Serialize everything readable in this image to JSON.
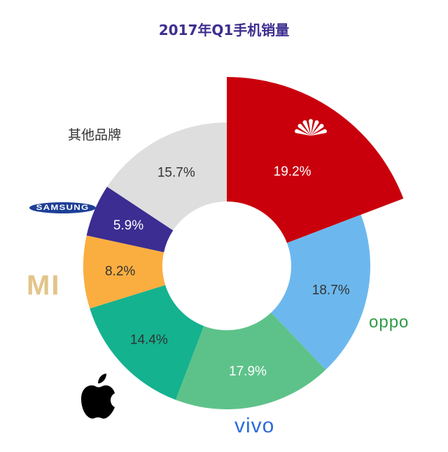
{
  "title": "2017年Q1手机销量",
  "chart_data": {
    "type": "pie",
    "variant": "donut",
    "title": "2017年Q1手机销量",
    "slices": [
      {
        "brand": "Huawei",
        "label": "",
        "value": 19.2,
        "value_text": "19.2%",
        "color": "#c9000c",
        "label_color": "#ffffff",
        "exploded": true,
        "icon": "huawei-logo-icon"
      },
      {
        "brand": "OPPO",
        "label": "oppo",
        "value": 18.7,
        "value_text": "18.7%",
        "color": "#6cb8ee",
        "label_color": "#333333",
        "icon": "oppo-logo-icon"
      },
      {
        "brand": "vivo",
        "label": "vivo",
        "value": 17.9,
        "value_text": "17.9%",
        "color": "#5dc289",
        "label_color": "#ffffff",
        "icon": "vivo-logo-icon"
      },
      {
        "brand": "Apple",
        "label": "",
        "value": 14.4,
        "value_text": "14.4%",
        "color": "#14b28f",
        "label_color": "#333333",
        "icon": "apple-logo-icon"
      },
      {
        "brand": "Xiaomi",
        "label": "MI",
        "value": 8.2,
        "value_text": "8.2%",
        "color": "#fbae40",
        "label_color": "#333333",
        "icon": "mi-logo-icon"
      },
      {
        "brand": "Samsung",
        "label": "SAMSUNG",
        "value": 5.9,
        "value_text": "5.9%",
        "color": "#3b2d91",
        "label_color": "#ffffff",
        "icon": "samsung-logo-icon"
      },
      {
        "brand": "其他品牌",
        "label": "其他品牌",
        "value": 15.7,
        "value_text": "15.7%",
        "color": "#dedede",
        "label_color": "#333333",
        "icon": ""
      }
    ]
  }
}
